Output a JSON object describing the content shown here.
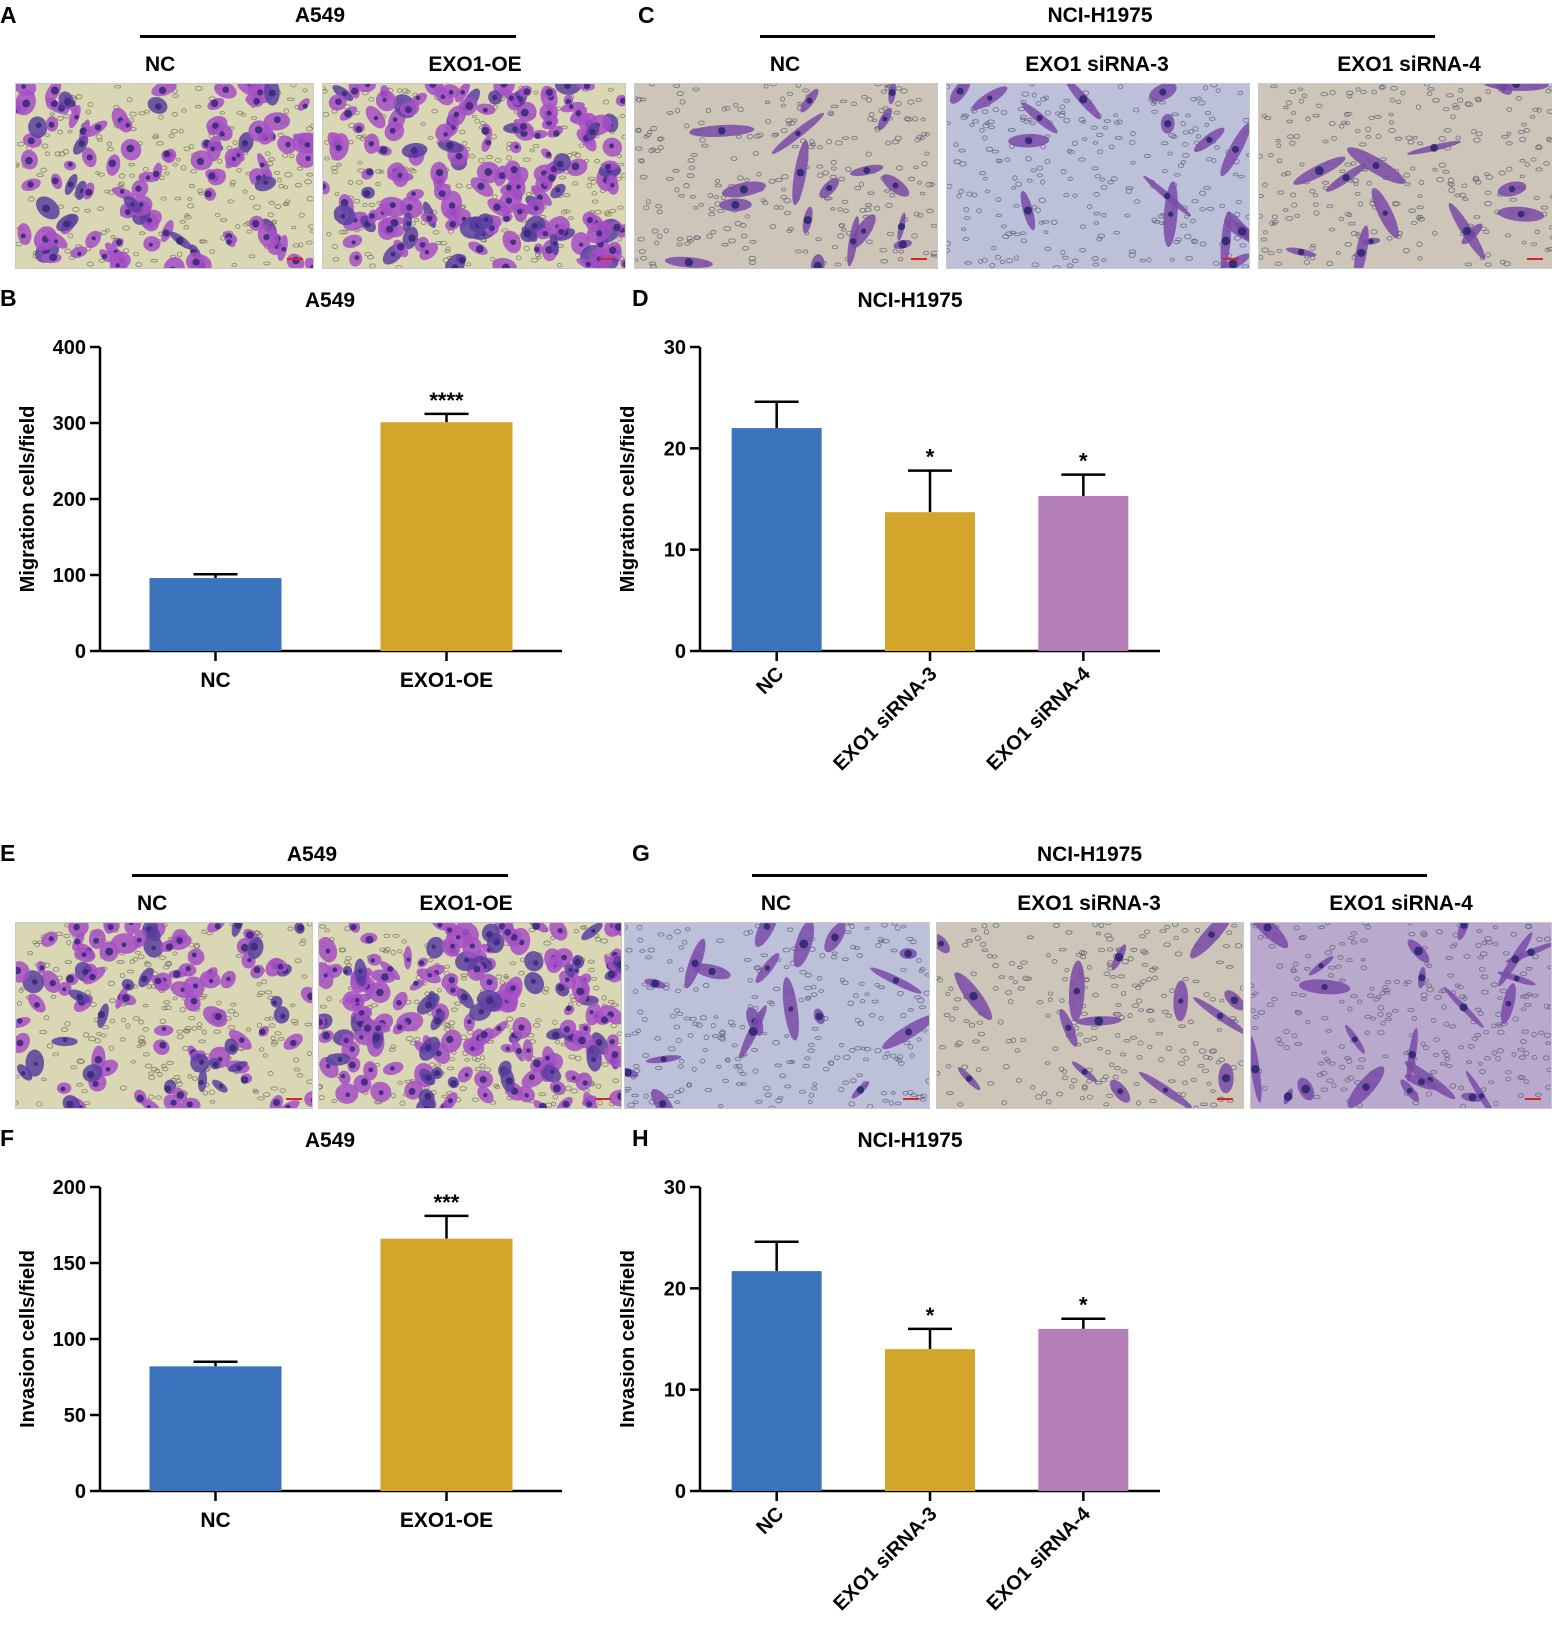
{
  "colors": {
    "nc": "#3b74bd",
    "gold": "#d4a52b",
    "violet": "#b47fb9",
    "stain_dense": "#a64fc5",
    "stain_light": "#7a4aa8",
    "bg_yellow": "#dad8b4",
    "bg_blue": "#bdc0d9"
  },
  "panels": {
    "A": {
      "letter": "A",
      "cell_line": "A549",
      "labels": [
        "NC",
        "EXO1-OE"
      ]
    },
    "C": {
      "letter": "C",
      "cell_line": "NCI-H1975",
      "labels": [
        "NC",
        "EXO1 siRNA-3",
        "EXO1 siRNA-4"
      ]
    },
    "E": {
      "letter": "E",
      "cell_line": "A549",
      "labels": [
        "NC",
        "EXO1-OE"
      ]
    },
    "G": {
      "letter": "G",
      "cell_line": "NCI-H1975",
      "labels": [
        "NC",
        "EXO1 siRNA-3",
        "EXO1 siRNA-4"
      ]
    }
  },
  "chart_data": [
    {
      "id": "B",
      "type": "bar",
      "title": "A549",
      "ylabel": "Migration cells/field",
      "categories": [
        "NC",
        "EXO1-OE"
      ],
      "values": [
        96,
        301
      ],
      "errors": [
        5,
        11
      ],
      "significance": [
        "",
        "****"
      ],
      "ylim": [
        0,
        400
      ],
      "yticks": [
        0,
        100,
        200,
        300,
        400
      ],
      "rotate_labels": false,
      "grid": false
    },
    {
      "id": "D",
      "type": "bar",
      "title": "NCI-H1975",
      "ylabel": "Migration cells/field",
      "categories": [
        "NC",
        "EXO1 siRNA-3",
        "EXO1 siRNA-4"
      ],
      "values": [
        22,
        13.7,
        15.3
      ],
      "errors": [
        2.6,
        4.1,
        2.1
      ],
      "significance": [
        "",
        "*",
        "*"
      ],
      "ylim": [
        0,
        30
      ],
      "yticks": [
        0,
        10,
        20,
        30
      ],
      "rotate_labels": true,
      "grid": false
    },
    {
      "id": "F",
      "type": "bar",
      "title": "A549",
      "ylabel": "Invasion cells/field",
      "categories": [
        "NC",
        "EXO1-OE"
      ],
      "values": [
        82,
        166
      ],
      "errors": [
        3,
        15
      ],
      "significance": [
        "",
        "***"
      ],
      "ylim": [
        0,
        200
      ],
      "yticks": [
        0,
        50,
        100,
        150,
        200
      ],
      "rotate_labels": false,
      "grid": false
    },
    {
      "id": "H",
      "type": "bar",
      "title": "NCI-H1975",
      "ylabel": "Invasion cells/field",
      "categories": [
        "NC",
        "EXO1 siRNA-3",
        "EXO1 siRNA-4"
      ],
      "values": [
        21.7,
        14,
        16
      ],
      "errors": [
        2.9,
        2,
        1
      ],
      "significance": [
        "",
        "*",
        "*"
      ],
      "ylim": [
        0,
        30
      ],
      "yticks": [
        0,
        10,
        20,
        30
      ],
      "rotate_labels": true,
      "grid": false
    }
  ]
}
